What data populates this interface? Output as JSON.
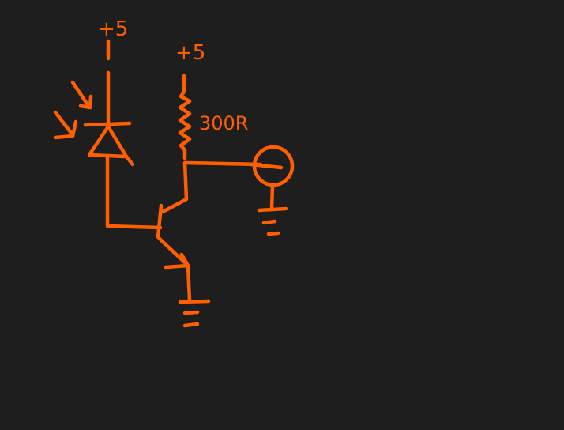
{
  "colors": {
    "background": "#1e1e1e",
    "ink": "#ff5f00"
  },
  "labels": {
    "supply_photodiode": "+5",
    "supply_collector": "+5",
    "resistor_value": "300R"
  }
}
